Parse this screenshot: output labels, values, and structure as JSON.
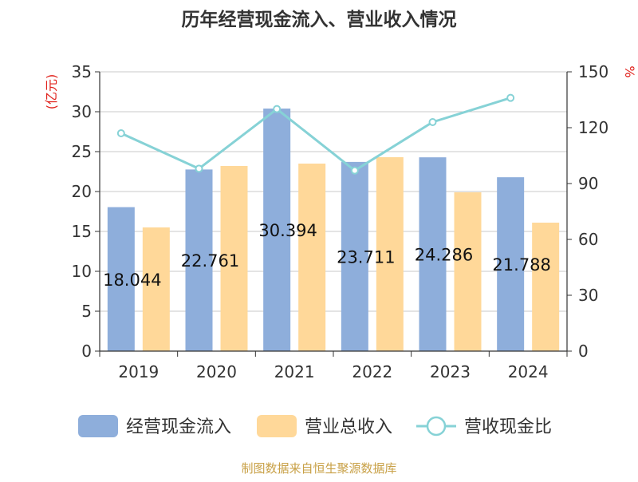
{
  "chart_data": {
    "type": "bar",
    "title": "历年经营现金流入、营业收入情况",
    "categories": [
      "2019",
      "2020",
      "2021",
      "2022",
      "2023",
      "2024"
    ],
    "y_left": {
      "unit_label": "(亿元)",
      "range": [
        0,
        35
      ],
      "ticks": [
        0,
        5,
        10,
        15,
        20,
        25,
        30,
        35
      ]
    },
    "y_right": {
      "unit_label": "%",
      "range": [
        0,
        150
      ],
      "ticks": [
        0,
        30,
        60,
        90,
        120,
        150
      ]
    },
    "series": [
      {
        "name": "经营现金流入",
        "type": "bar",
        "axis": "left",
        "color": "#8eaedb",
        "values": [
          18.044,
          22.761,
          30.394,
          23.711,
          24.286,
          21.788
        ],
        "data_labels": [
          "18.044",
          "22.761",
          "30.394",
          "23.711",
          "24.286",
          "21.788"
        ]
      },
      {
        "name": "营业总收入",
        "type": "bar",
        "axis": "left",
        "color": "#ffd899",
        "values": [
          15.5,
          23.2,
          23.5,
          24.3,
          19.9,
          16.1
        ]
      },
      {
        "name": "营收现金比",
        "type": "line",
        "axis": "right",
        "color": "#86d2d6",
        "values": [
          117,
          98,
          130,
          97,
          123,
          136
        ]
      }
    ],
    "grid": true,
    "legend_position": "bottom"
  },
  "source": "制图数据来自恒生聚源数据库"
}
